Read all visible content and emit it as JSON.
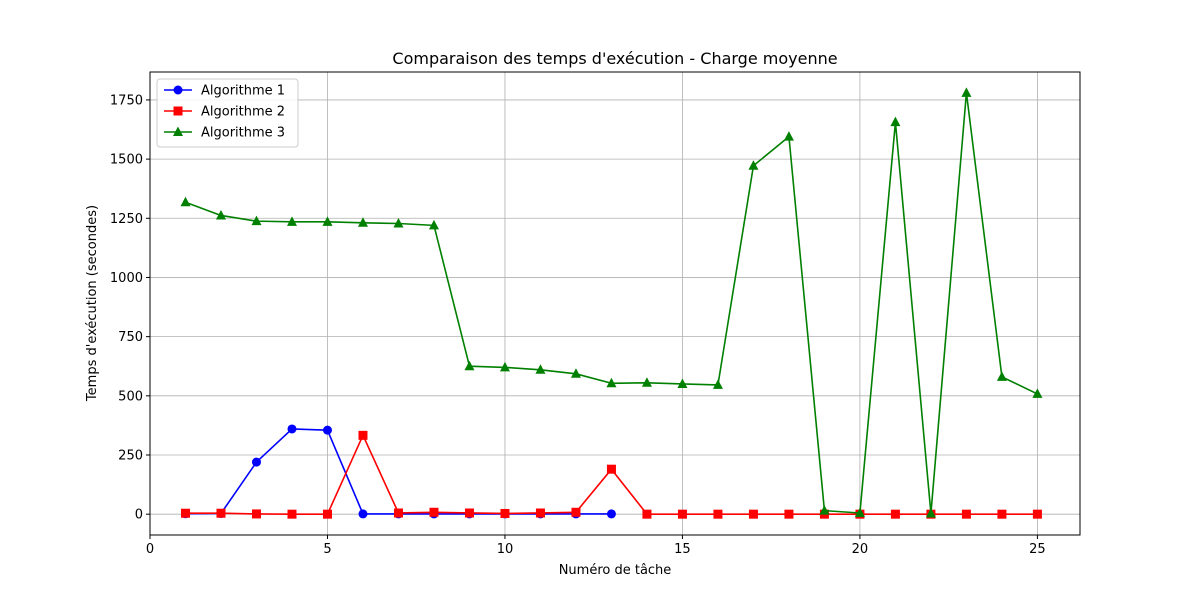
{
  "chart_data": {
    "type": "line",
    "title": "Comparaison des temps d'exécution - Charge moyenne",
    "xlabel": "Numéro de tâche",
    "ylabel": "Temps d'exécution (secondes)",
    "xlim": [
      0,
      26.2
    ],
    "ylim": [
      -88,
      1868
    ],
    "xticks": [
      0,
      5,
      10,
      15,
      20,
      25
    ],
    "yticks": [
      0,
      250,
      500,
      750,
      1000,
      1250,
      1500,
      1750
    ],
    "grid": true,
    "legend_position": "top-left",
    "series": [
      {
        "name": "Algorithme 1",
        "color": "#0000ff",
        "marker": "circle",
        "x": [
          1,
          2,
          3,
          4,
          5,
          6,
          7,
          8,
          9,
          10,
          11,
          12,
          13
        ],
        "y": [
          2,
          3,
          220,
          360,
          355,
          1,
          1,
          1,
          1,
          1,
          1,
          1,
          1
        ]
      },
      {
        "name": "Algorithme 2",
        "color": "#ff0000",
        "marker": "square",
        "x": [
          1,
          2,
          3,
          4,
          5,
          6,
          7,
          8,
          9,
          10,
          11,
          12,
          13,
          14,
          15,
          16,
          17,
          18,
          19,
          20,
          21,
          22,
          23,
          24,
          25
        ],
        "y": [
          4,
          4,
          1,
          0,
          0,
          333,
          5,
          8,
          5,
          3,
          5,
          8,
          190,
          0,
          0,
          0,
          0,
          0,
          0,
          0,
          0,
          0,
          0,
          0,
          0
        ]
      },
      {
        "name": "Algorithme 3",
        "color": "#008000",
        "marker": "triangle",
        "x": [
          1,
          2,
          3,
          4,
          5,
          6,
          7,
          8,
          9,
          10,
          11,
          12,
          13,
          14,
          15,
          16,
          17,
          18,
          19,
          20,
          21,
          22,
          23,
          24,
          25
        ],
        "y": [
          1318,
          1262,
          1238,
          1235,
          1235,
          1231,
          1228,
          1220,
          625,
          620,
          610,
          593,
          553,
          555,
          550,
          546,
          1472,
          1595,
          15,
          5,
          1656,
          3,
          1780,
          580,
          508
        ]
      }
    ]
  }
}
